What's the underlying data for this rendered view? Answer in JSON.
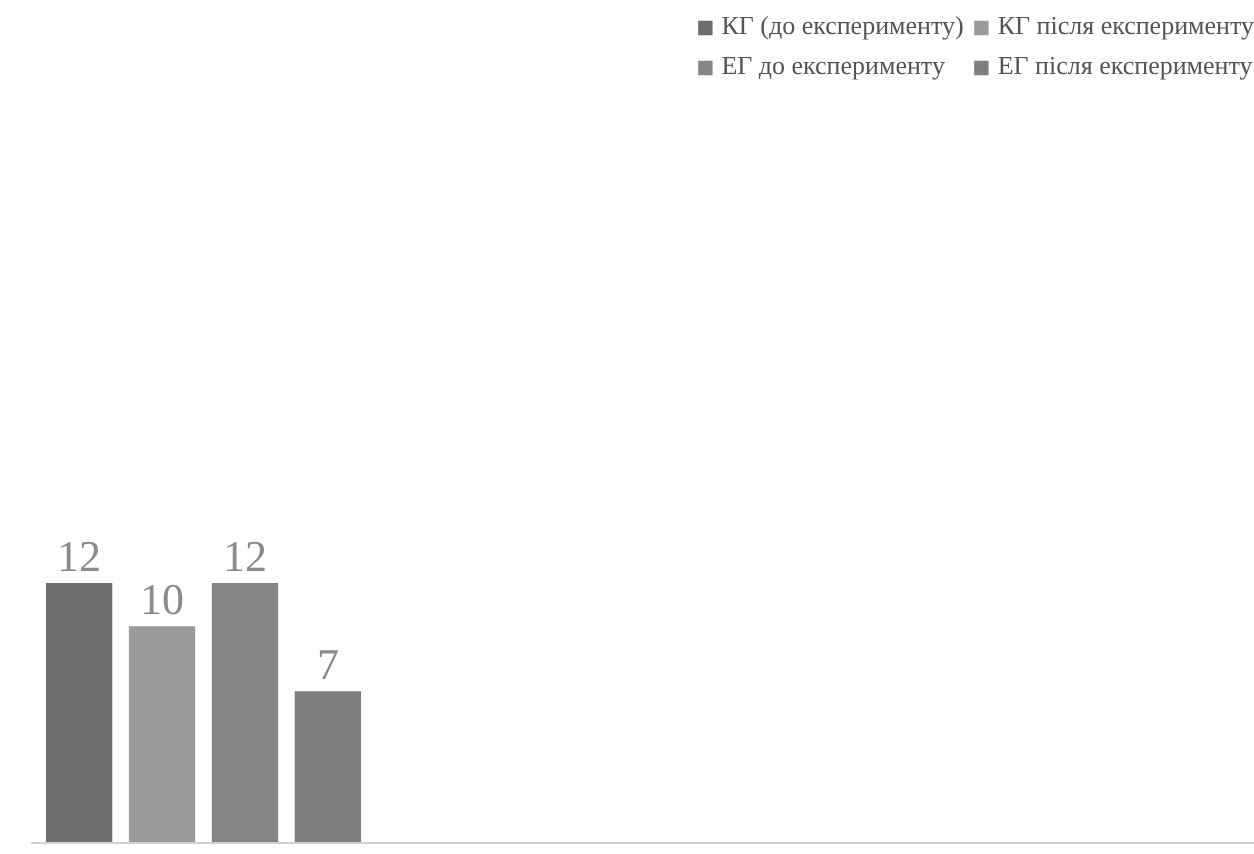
{
  "chart_data": {
    "type": "bar",
    "categories": [
      null
    ],
    "data_labels": true,
    "legend": "top",
    "series": [
      {
        "name": "КГ (до експерименту)",
        "color": "#6e6e6e",
        "values": [
          12
        ]
      },
      {
        "name": "КГ після експерименту",
        "color": "#9a9a9a",
        "values": [
          10
        ]
      },
      {
        "name": "ЕГ до експерименту",
        "color": "#868686",
        "values": [
          12
        ]
      },
      {
        "name": "ЕГ після експерименту",
        "color": "#7e7e7e",
        "values": [
          7
        ]
      }
    ]
  }
}
